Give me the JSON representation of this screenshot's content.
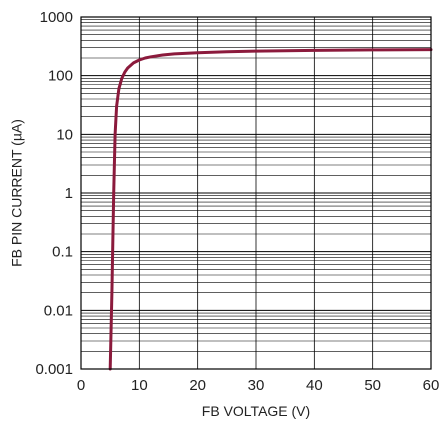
{
  "chart_data": {
    "type": "line",
    "xlabel": "FB VOLTAGE (V)",
    "ylabel": "FB PIN CURRENT (µA)",
    "xlim": [
      0,
      60
    ],
    "ylim": [
      0.001,
      1000
    ],
    "y_scale": "log",
    "grid": true,
    "x_ticks": [
      "0",
      "10",
      "20",
      "30",
      "40",
      "50",
      "60"
    ],
    "y_ticks": [
      "0.001",
      "0.01",
      "0.1",
      "1",
      "10",
      "100",
      "1000"
    ],
    "series": [
      {
        "color": "#8b1a3c",
        "x": [
          5.0,
          5.3,
          5.6,
          5.85,
          6.1,
          6.5,
          7.0,
          7.5,
          8.0,
          9.0,
          10.0,
          11.0,
          12.0,
          14.0,
          16.0,
          20.0,
          25.0,
          30.0,
          40.0,
          50.0,
          60.0
        ],
        "y": [
          0.001,
          0.02,
          1,
          10,
          30,
          60,
          90,
          115,
          135,
          165,
          185,
          200,
          210,
          225,
          235,
          245,
          255,
          262,
          270,
          275,
          278
        ]
      }
    ]
  }
}
